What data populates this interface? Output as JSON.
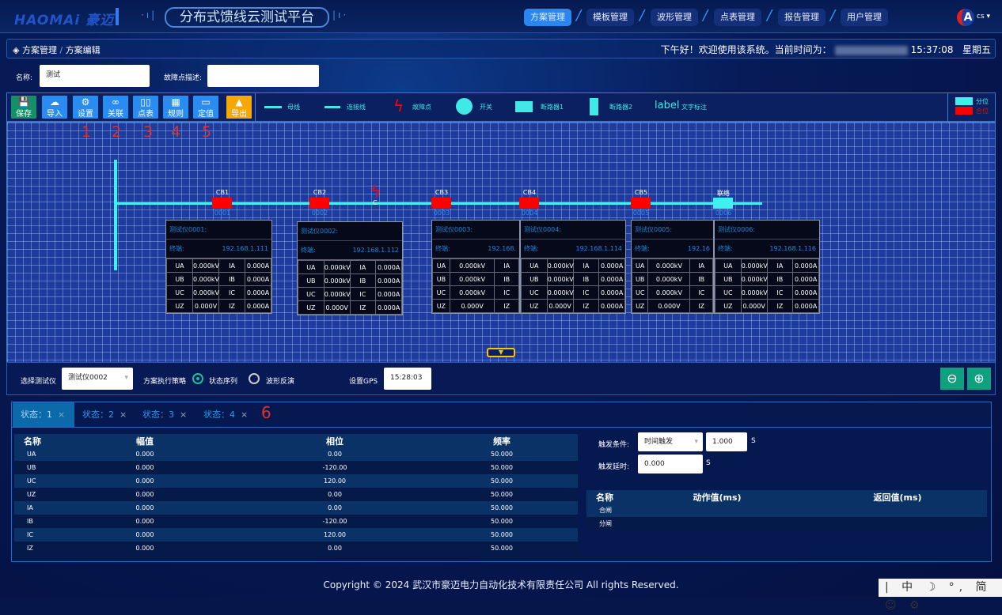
{
  "header": {
    "logo": "HAOMAi 豪迈",
    "title": "分布式馈线云测试平台",
    "nav": [
      "方案管理",
      "模板管理",
      "波形管理",
      "点表管理",
      "报告管理",
      "用户管理"
    ],
    "active_nav": 0,
    "user": "cs"
  },
  "breadcrumb": {
    "items": [
      "方案管理",
      "方案编辑"
    ],
    "separator": "/"
  },
  "greeting": {
    "text": "下午好！欢迎使用该系统。当前时间为：",
    "time": "15:37:08",
    "weekday": "星期五"
  },
  "form": {
    "name_label": "名称:",
    "name_value": "测试",
    "fault_label": "故障点描述:",
    "fault_value": ""
  },
  "toolbar": {
    "buttons": [
      {
        "label": "保存",
        "icon": "save-icon",
        "glyph": "💾",
        "color": "#13906a"
      },
      {
        "label": "导入",
        "icon": "cloud-upload-icon",
        "glyph": "☁",
        "color": "#2a8bf0"
      },
      {
        "label": "设置",
        "icon": "gear-icon",
        "glyph": "⚙",
        "color": "#2a8bf0"
      },
      {
        "label": "关联",
        "icon": "link-icon",
        "glyph": "∞",
        "color": "#2a8bf0"
      },
      {
        "label": "点表",
        "icon": "columns-icon",
        "glyph": "▯▯",
        "color": "#2a8bf0"
      },
      {
        "label": "规则",
        "icon": "grid-icon",
        "glyph": "▦",
        "color": "#2a8bf0"
      },
      {
        "label": "定值",
        "icon": "window-icon",
        "glyph": "▭",
        "color": "#2a8bf0"
      },
      {
        "label": "导出",
        "icon": "export-icon",
        "glyph": "▲",
        "color": "#f5a800"
      }
    ],
    "annotations": [
      "1",
      "2",
      "3",
      "4",
      "5"
    ],
    "legend": [
      {
        "label": "母线",
        "icon": "busbar-icon"
      },
      {
        "label": "连接线",
        "icon": "line-icon"
      },
      {
        "label": "故障点",
        "icon": "fault-icon"
      },
      {
        "label": "开关",
        "icon": "switch-icon"
      },
      {
        "label": "断路器1",
        "icon": "breaker1-icon"
      },
      {
        "label": "断路器2",
        "icon": "breaker2-icon"
      },
      {
        "label": "文字标注",
        "icon": "label-icon",
        "sample": "label"
      }
    ],
    "state_legend": [
      {
        "label": "分位",
        "color": "#40f0f0"
      },
      {
        "label": "合位",
        "color": "#ff0000"
      }
    ]
  },
  "diagram": {
    "fault_label": "C",
    "colors": {
      "bus": "#40f0f0",
      "closed": "#ff0000",
      "open": "#40f0f0"
    },
    "breakers": [
      {
        "name": "CB1",
        "id": "0001",
        "state": "closed"
      },
      {
        "name": "CB2",
        "id": "0002",
        "state": "closed"
      },
      {
        "name": "CB3",
        "id": "0003",
        "state": "closed"
      },
      {
        "name": "CB4",
        "id": "0004",
        "state": "closed"
      },
      {
        "name": "CB5",
        "id": "0005",
        "state": "closed"
      },
      {
        "name": "联络",
        "id": "0006",
        "state": "open"
      }
    ],
    "devices": [
      {
        "title": "测试仪0001:",
        "terminal": "终端:",
        "ip": "192.168.1.111"
      },
      {
        "title": "测试仪0002:",
        "terminal": "终端:",
        "ip": "192.168.1.112"
      },
      {
        "title": "测试仪0003:",
        "terminal": "终端:",
        "ip": "192.168."
      },
      {
        "title": "测试仪0004:",
        "terminal": "终端:",
        "ip": "192.168.1.114"
      },
      {
        "title": "测试仪0005:",
        "terminal": "终端:",
        "ip": "192.16"
      },
      {
        "title": "测试仪0006:",
        "terminal": "终端:",
        "ip": "192.168.1.116"
      }
    ],
    "readings": [
      [
        "UA",
        "0.000kV",
        "IA",
        "0.000A"
      ],
      [
        "UB",
        "0.000kV",
        "IB",
        "0.000A"
      ],
      [
        "UC",
        "0.000kV",
        "IC",
        "0.000A"
      ],
      [
        "UZ",
        "0.000V",
        "IZ",
        "0.000A"
      ]
    ]
  },
  "controls": {
    "device_label": "选择测试仪",
    "device_value": "测试仪0002",
    "strategy_label": "方案执行策略",
    "options": [
      "状态序列",
      "波形反演"
    ],
    "selected": 0,
    "gps_label": "设置GPS",
    "gps_value": "15:28:03"
  },
  "tabs": {
    "items": [
      "状态：1",
      "状态：2",
      "状态：3",
      "状态：4"
    ],
    "active": 0,
    "annotation": "6"
  },
  "state_table": {
    "headers": [
      "名称",
      "幅值",
      "相位",
      "频率"
    ],
    "rows": [
      [
        "UA",
        "0.000",
        "0.00",
        "50.000"
      ],
      [
        "UB",
        "0.000",
        "-120.00",
        "50.000"
      ],
      [
        "UC",
        "0.000",
        "120.00",
        "50.000"
      ],
      [
        "UZ",
        "0.000",
        "0.00",
        "50.000"
      ],
      [
        "IA",
        "0.000",
        "0.00",
        "50.000"
      ],
      [
        "IB",
        "0.000",
        "-120.00",
        "50.000"
      ],
      [
        "IC",
        "0.000",
        "120.00",
        "50.000"
      ],
      [
        "IZ",
        "0.000",
        "0.00",
        "50.000"
      ]
    ]
  },
  "trigger": {
    "cond_label": "触发条件:",
    "cond_value": "时间触发",
    "cond_time": "1.000",
    "unit": "S",
    "delay_label": "触发延时:",
    "delay_value": "0.000"
  },
  "action_table": {
    "headers": [
      "名称",
      "动作值(ms)",
      "返回值(ms)"
    ],
    "rows": [
      [
        "合闸",
        "",
        ""
      ],
      [
        "分闸",
        "",
        ""
      ]
    ]
  },
  "footer": {
    "text": "Copyright © 2024 武汉市豪迈电力自动化技术有限责任公司 All rights Reserved."
  },
  "ime": {
    "text": "| 中 ☽ °, 简 ☺ ⚙"
  }
}
